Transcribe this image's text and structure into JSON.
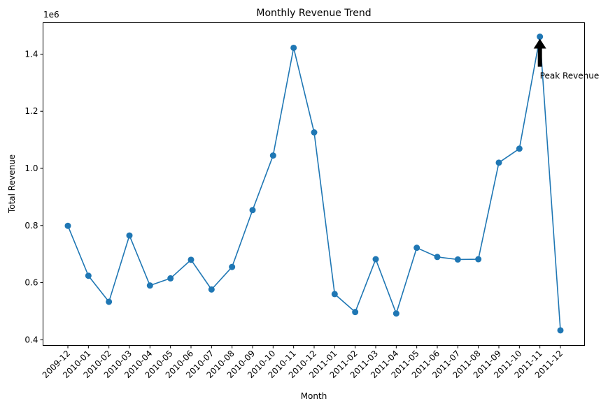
{
  "chart_data": {
    "type": "line",
    "title": "Monthly Revenue Trend",
    "xlabel": "Month",
    "ylabel": "Total Revenue",
    "y_scale_label": "1e6",
    "y_multiplier": 1000000,
    "ylim": [
      0.38,
      1.51
    ],
    "yticks": [
      0.4,
      0.6,
      0.8,
      1.0,
      1.2,
      1.4
    ],
    "ytick_labels": [
      "0.4",
      "0.6",
      "0.8",
      "1.0",
      "1.2",
      "1.4"
    ],
    "grid": false,
    "categories": [
      "2009-12",
      "2010-01",
      "2010-02",
      "2010-03",
      "2010-04",
      "2010-05",
      "2010-06",
      "2010-07",
      "2010-08",
      "2010-09",
      "2010-10",
      "2010-11",
      "2010-12",
      "2011-01",
      "2011-02",
      "2011-03",
      "2011-04",
      "2011-05",
      "2011-06",
      "2011-07",
      "2011-08",
      "2011-09",
      "2011-10",
      "2011-11",
      "2011-12"
    ],
    "series": [
      {
        "color": "#1f77b4",
        "marker": "circle",
        "values": [
          799000,
          624000,
          533000,
          765000,
          590000,
          615000,
          680000,
          576000,
          655000,
          854000,
          1045000,
          1422000,
          1126000,
          560000,
          497000,
          682000,
          492000,
          722000,
          690000,
          681000,
          682000,
          1020000,
          1069000,
          1461000,
          433000
        ]
      }
    ],
    "annotations": [
      {
        "text": "Peak Revenue",
        "points_to": "2011-11",
        "arrow": true,
        "arrow_color": "#000000"
      }
    ]
  }
}
